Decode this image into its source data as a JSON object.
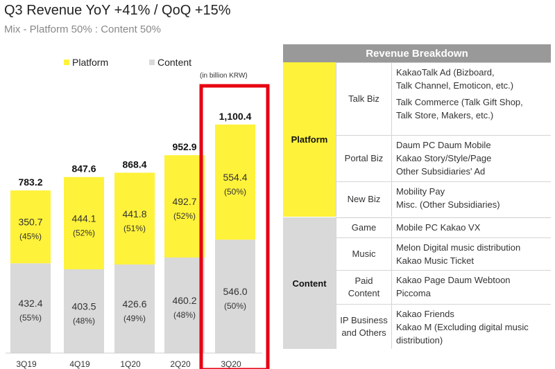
{
  "header": {
    "title": "Q3 Revenue  YoY +41% / QoQ +15%",
    "subtitle": "Mix - Platform 50% : Content 50%"
  },
  "chart_data": {
    "type": "bar",
    "stacked": true,
    "unit": "(in billion KRW)",
    "categories": [
      "3Q19",
      "4Q19",
      "1Q20",
      "2Q20",
      "3Q20"
    ],
    "totals": [
      "783.2",
      "847.6",
      "868.4",
      "952.9",
      "1,100.4"
    ],
    "total_values": [
      783.2,
      847.6,
      868.4,
      952.9,
      1100.4
    ],
    "series": [
      {
        "name": "Content",
        "color": "#d9d9d9",
        "values": [
          432.4,
          403.5,
          426.6,
          460.2,
          546.0
        ],
        "labels": [
          "432.4",
          "403.5",
          "426.6",
          "460.2",
          "546.0"
        ],
        "shares": [
          "(55%)",
          "(48%)",
          "(49%)",
          "(48%)",
          "(50%)"
        ]
      },
      {
        "name": "Platform",
        "color": "#fff23a",
        "values": [
          350.7,
          444.1,
          441.8,
          492.7,
          554.4
        ],
        "labels": [
          "350.7",
          "444.1",
          "441.8",
          "492.7",
          "554.4"
        ],
        "shares": [
          "(45%)",
          "(52%)",
          "(51%)",
          "(52%)",
          "(50%)"
        ]
      }
    ],
    "highlight": "3Q20",
    "highlight_color": "#e60012",
    "legend": "top-left",
    "ylim": [
      0,
      1150
    ]
  },
  "breakdown": {
    "title": "Revenue Breakdown",
    "groups": [
      {
        "name": "Platform",
        "color": "#fff23a",
        "rows": [
          {
            "sub": [
              "Talk Biz"
            ],
            "items": [
              "KakaoTalk Ad (Bizboard,",
              "Talk Channel, Emoticon, etc.)",
              "",
              "Talk Commerce (Talk Gift Shop,",
              "Talk Store, Makers, etc.)"
            ],
            "height": 104
          },
          {
            "sub": [
              "Portal Biz"
            ],
            "items": [
              "Daum PC    Daum Mobile",
              "Kakao Story/Style/Page",
              "Other Subsidiaries' Ad"
            ],
            "height": 66
          },
          {
            "sub": [
              "New Biz"
            ],
            "items": [
              "Mobility    Pay",
              "Misc. (Other Subsidiaries)"
            ],
            "height": 50
          }
        ]
      },
      {
        "name": "Content",
        "color": "#d9d9d9",
        "rows": [
          {
            "sub": [
              "Game"
            ],
            "items": [
              "Mobile    PC    Kakao VX"
            ],
            "height": 28
          },
          {
            "sub": [
              "Music"
            ],
            "items": [
              "Melon    Digital music distribution",
              "Kakao Music    Ticket"
            ],
            "height": 46
          },
          {
            "sub": [
              "Paid",
              "Content"
            ],
            "items": [
              "Kakao Page    Daum Webtoon",
              "Piccoma"
            ],
            "height": 48
          },
          {
            "sub": [
              "IP Business",
              "and Others"
            ],
            "items": [
              "Kakao Friends",
              "Kakao M (Excluding digital music",
              "distribution)"
            ],
            "height": 64
          }
        ]
      }
    ]
  }
}
